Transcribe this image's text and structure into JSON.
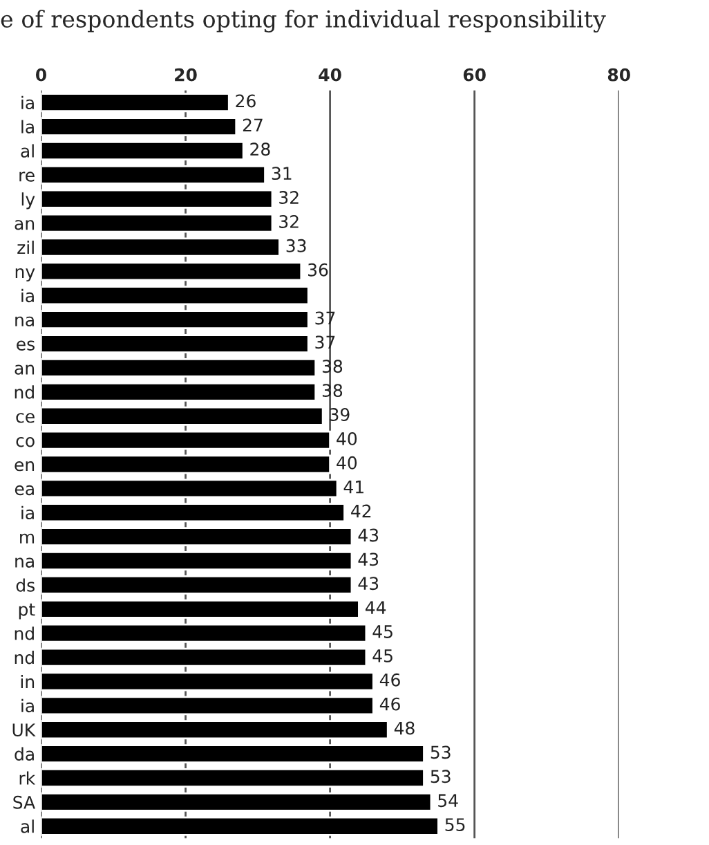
{
  "chart_data": {
    "type": "bar",
    "orientation": "horizontal",
    "title": "e of respondents opting for individual responsibility",
    "categories": [
      "ia",
      "la",
      "al",
      "re",
      "ly",
      "an",
      "zil",
      "ny",
      "ia",
      "na",
      "es",
      "an",
      "nd",
      "ce",
      "co",
      "en",
      "ea",
      "ia",
      "m",
      "na",
      "ds",
      "pt",
      "nd",
      "nd",
      "in",
      "ia",
      "UK",
      "da",
      "rk",
      "SA",
      "al"
    ],
    "values": [
      26,
      27,
      28,
      31,
      32,
      32,
      33,
      36,
      37,
      37,
      37,
      38,
      38,
      39,
      40,
      40,
      41,
      42,
      43,
      43,
      43,
      44,
      45,
      45,
      46,
      46,
      48,
      53,
      53,
      54,
      55
    ],
    "value_labels": [
      "26",
      "27",
      "28",
      "31",
      "32",
      "32",
      "33",
      "36",
      null,
      "37",
      "37",
      "38",
      "38",
      "39",
      "40",
      "40",
      "41",
      "42",
      "43",
      "43",
      "43",
      "44",
      "45",
      "45",
      "46",
      "46",
      "48",
      "53",
      "53",
      "54",
      "55"
    ],
    "color": "#000000",
    "xlim": [
      0,
      80
    ],
    "xticks": [
      0,
      20,
      40,
      60,
      80
    ],
    "grid": "x"
  }
}
